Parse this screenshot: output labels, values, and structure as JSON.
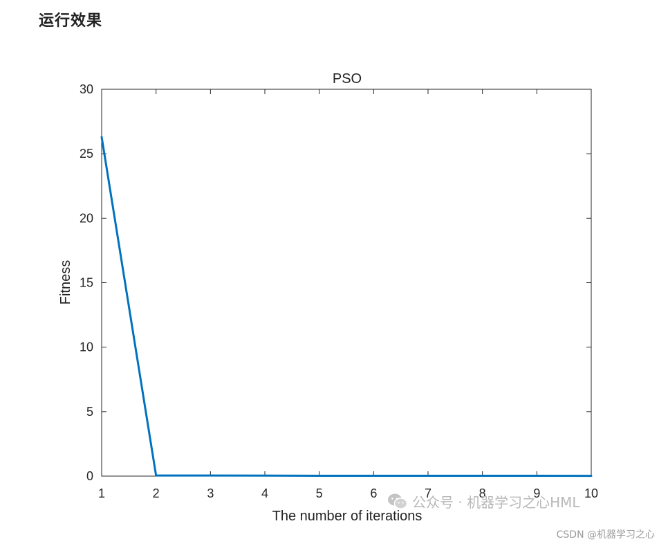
{
  "page": {
    "heading": "运行效果"
  },
  "chart_data": {
    "type": "line",
    "title": "PSO",
    "xlabel": "The number of iterations",
    "ylabel": "Fitness",
    "xlim": [
      1,
      10
    ],
    "ylim": [
      0,
      30
    ],
    "x_ticks": [
      "1",
      "2",
      "3",
      "4",
      "5",
      "6",
      "7",
      "8",
      "9",
      "10"
    ],
    "y_ticks": [
      "0",
      "5",
      "10",
      "15",
      "20",
      "25",
      "30"
    ],
    "grid": false,
    "series": [
      {
        "x": [
          1,
          2,
          3,
          4,
          5,
          6,
          7,
          8,
          9,
          10
        ],
        "values": [
          26.3,
          0.05,
          0.05,
          0.04,
          0.03,
          0.03,
          0.03,
          0.03,
          0.03,
          0.02
        ],
        "color": "#0072BD"
      }
    ]
  },
  "watermark": {
    "wechat_icon": "wechat-icon",
    "text": "公众号 · 机器学习之心HML",
    "csdn": "CSDN @机器学习之心"
  }
}
